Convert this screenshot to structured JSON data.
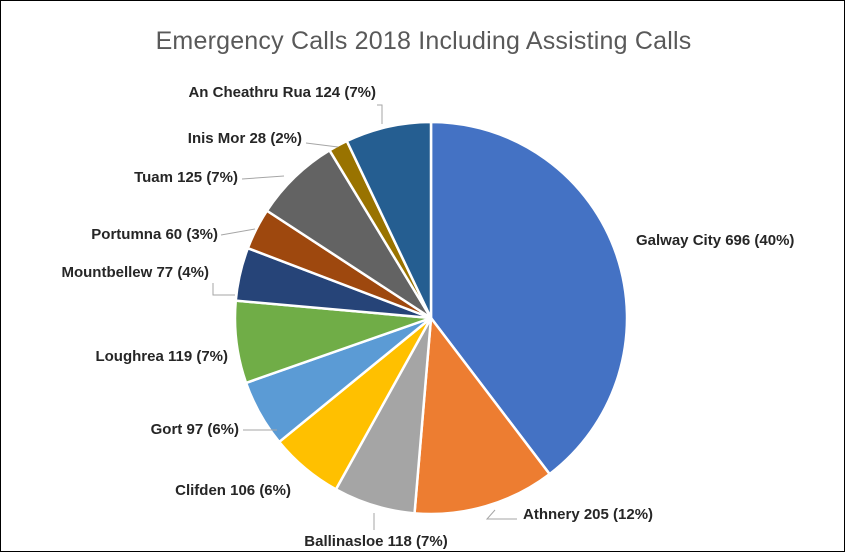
{
  "chart_data": {
    "type": "pie",
    "title": "Emergency Calls 2018 Including Assisting Calls",
    "slices": [
      {
        "name": "Galway City",
        "value": 696,
        "percent": "40%",
        "color": "#4472C4",
        "label": "Galway  City 696 (40%)"
      },
      {
        "name": "Athnery",
        "value": 205,
        "percent": "12%",
        "color": "#ED7D31",
        "label": "Athnery 205 (12%)"
      },
      {
        "name": "Ballinasloe",
        "value": 118,
        "percent": "7%",
        "color": "#A5A5A5",
        "label": "Ballinasloe 118 (7%)"
      },
      {
        "name": "Clifden",
        "value": 106,
        "percent": "6%",
        "color": "#FFC000",
        "label": "Clifden 106 (6%)"
      },
      {
        "name": "Gort",
        "value": 97,
        "percent": "6%",
        "color": "#5B9BD5",
        "label": "Gort 97 (6%)"
      },
      {
        "name": "Loughrea",
        "value": 119,
        "percent": "7%",
        "color": "#70AD47",
        "label": "Loughrea 119 (7%)"
      },
      {
        "name": "Mountbellew",
        "value": 77,
        "percent": "4%",
        "color": "#264478",
        "label": "Mountbellew 77 (4%)"
      },
      {
        "name": "Portumna",
        "value": 60,
        "percent": "3%",
        "color": "#9E480E",
        "label": "Portumna 60 (3%)"
      },
      {
        "name": "Tuam",
        "value": 125,
        "percent": "7%",
        "color": "#636363",
        "label": "Tuam 125 (7%)"
      },
      {
        "name": "Inis Mor",
        "value": 28,
        "percent": "2%",
        "color": "#997300",
        "label": "Inis Mor 28 (2%)"
      },
      {
        "name": "An Cheathru Rua",
        "value": 124,
        "percent": "7%",
        "color": "#255E91",
        "label": "An Cheathru Rua 124 (7%)"
      }
    ],
    "legend": "none",
    "start_angle": "12 o'clock",
    "direction": "clockwise"
  }
}
